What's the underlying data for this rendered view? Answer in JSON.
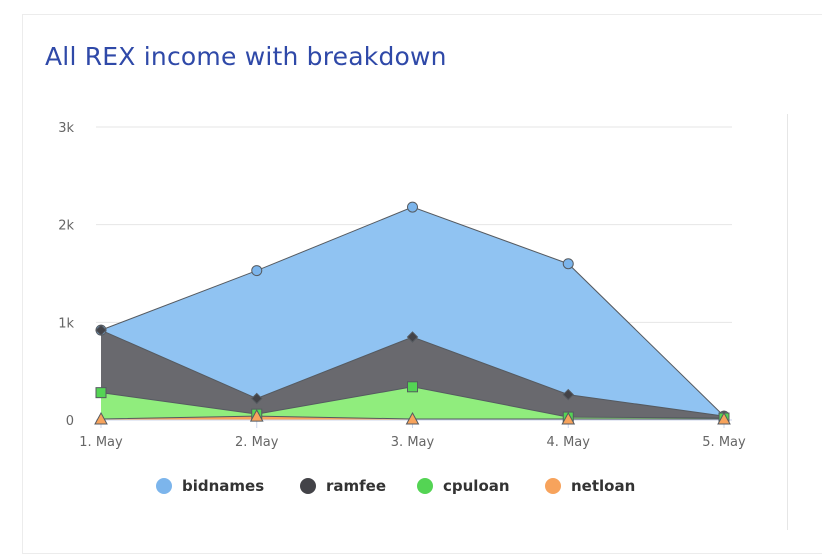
{
  "title": "All REX income with breakdown",
  "chart_data": {
    "type": "area",
    "stacked": true,
    "categories": [
      "1. May",
      "2. May",
      "3. May",
      "4. May",
      "5. May"
    ],
    "y_ticks": [
      "0",
      "1k",
      "2k",
      "3k"
    ],
    "ylim": [
      0,
      3000
    ],
    "grid": true,
    "legend_position": "bottom",
    "series": [
      {
        "name": "bidnames",
        "color": "#7cb5ec",
        "fill": "#90c3f2",
        "marker": "circle",
        "values": [
          0,
          1310,
          1330,
          1340,
          0
        ]
      },
      {
        "name": "ramfee",
        "color": "#434348",
        "fill": "#69696e",
        "marker": "diamond",
        "values": [
          640,
          160,
          510,
          230,
          20
        ]
      },
      {
        "name": "cpuloan",
        "color": "#54d454",
        "fill": "#90ed7d",
        "marker": "square",
        "values": [
          270,
          20,
          330,
          20,
          10
        ]
      },
      {
        "name": "netloan",
        "color": "#f7a35c",
        "fill": "#f7a35c",
        "marker": "triangle",
        "values": [
          10,
          40,
          10,
          10,
          10
        ]
      }
    ]
  }
}
